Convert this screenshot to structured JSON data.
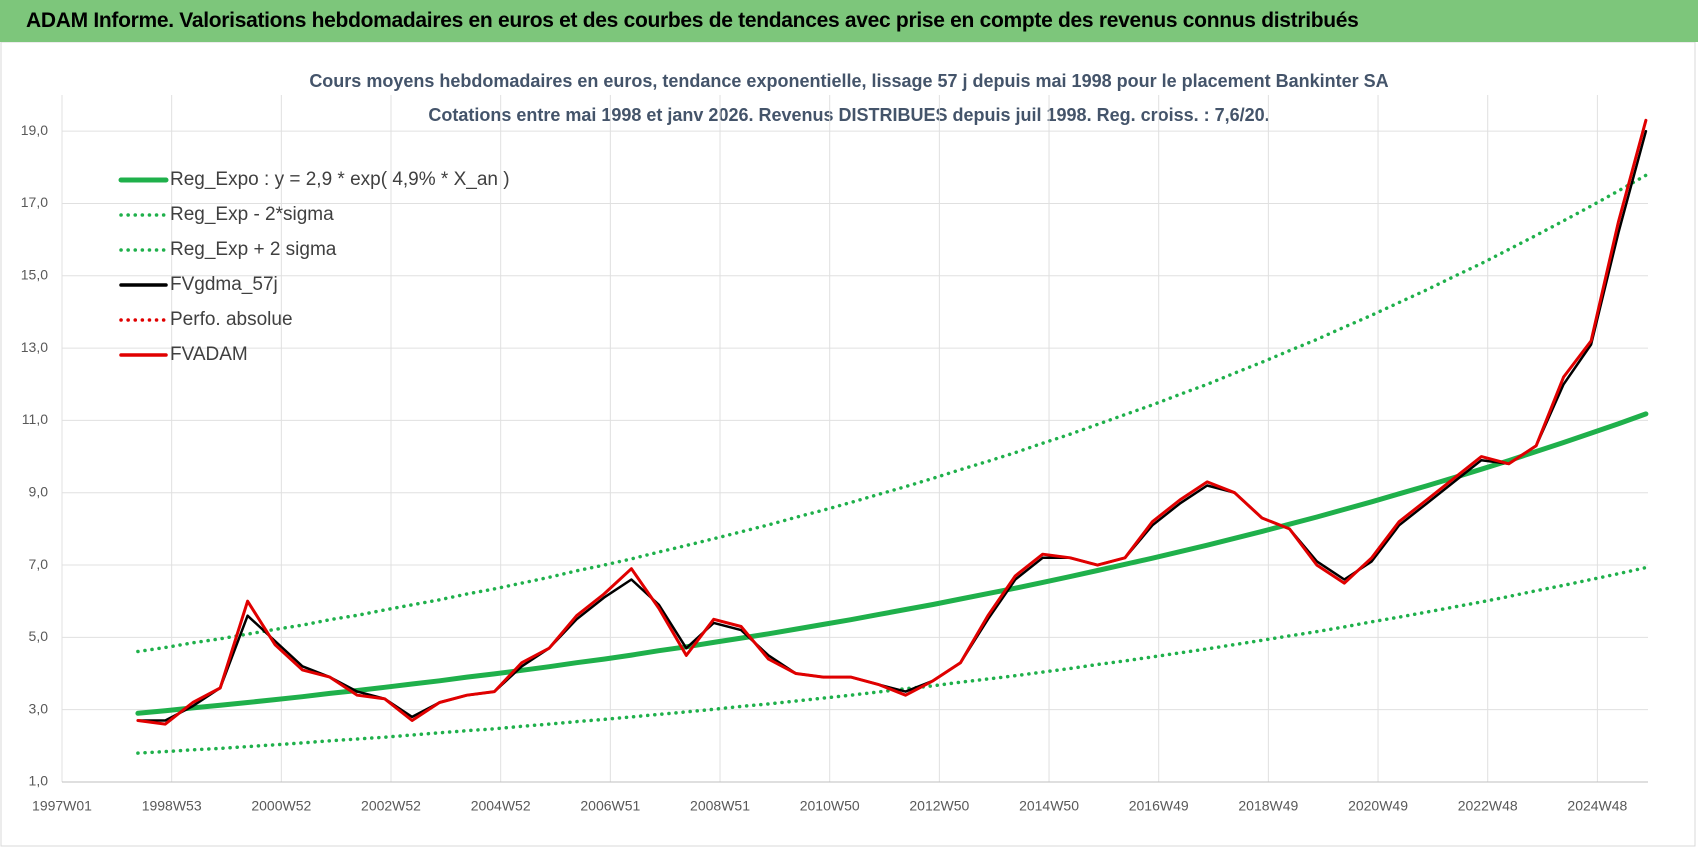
{
  "header": {
    "title": "ADAM Informe. Valorisations hebdomadaires en euros et des courbes de tendances avec prise en compte des revenus connus distribués"
  },
  "chart_data": {
    "type": "line",
    "title": "Cours moyens hebdomadaires en euros, tendance exponentielle, lissage 57 j depuis mai 1998 pour le placement Bankinter SA",
    "subtitle": "Cotations entre mai 1998 et janv 2026. Revenus DISTRIBUES depuis juil 1998. Reg. croiss. : 7,6/20.",
    "x": [
      72,
      98,
      124,
      150,
      176,
      202,
      228,
      254,
      280,
      306,
      332,
      358,
      384,
      410,
      436,
      462,
      488,
      514,
      540,
      566,
      592,
      618,
      644,
      670,
      696,
      722,
      748,
      774,
      800,
      826,
      852,
      878,
      904,
      930,
      956,
      982,
      1008,
      1034,
      1060,
      1086,
      1112,
      1138,
      1164,
      1190,
      1216,
      1242,
      1268,
      1294,
      1320,
      1346,
      1372,
      1398,
      1424,
      1450,
      1476,
      1502
    ],
    "xlim": [
      0,
      1504
    ],
    "xticks": [
      {
        "value": 0,
        "label": "1997W01"
      },
      {
        "value": 104,
        "label": "1998W53"
      },
      {
        "value": 208,
        "label": "2000W52"
      },
      {
        "value": 312,
        "label": "2002W52"
      },
      {
        "value": 416,
        "label": "2004W52"
      },
      {
        "value": 520,
        "label": "2006W51"
      },
      {
        "value": 624,
        "label": "2008W51"
      },
      {
        "value": 728,
        "label": "2010W50"
      },
      {
        "value": 832,
        "label": "2012W50"
      },
      {
        "value": 936,
        "label": "2014W50"
      },
      {
        "value": 1040,
        "label": "2016W49"
      },
      {
        "value": 1144,
        "label": "2018W49"
      },
      {
        "value": 1248,
        "label": "2020W49"
      },
      {
        "value": 1352,
        "label": "2022W48"
      },
      {
        "value": 1456,
        "label": "2024W48"
      }
    ],
    "ylim": [
      1,
      20
    ],
    "yticks": [
      {
        "value": 1,
        "label": "1,0"
      },
      {
        "value": 3,
        "label": "3,0"
      },
      {
        "value": 5,
        "label": "5,0"
      },
      {
        "value": 7,
        "label": "7,0"
      },
      {
        "value": 9,
        "label": "9,0"
      },
      {
        "value": 11,
        "label": "11,0"
      },
      {
        "value": 13,
        "label": "13,0"
      },
      {
        "value": 15,
        "label": "15,0"
      },
      {
        "value": 17,
        "label": "17,0"
      },
      {
        "value": 19,
        "label": "19,0"
      }
    ],
    "grid": true,
    "legend": "top-left",
    "series": [
      {
        "name": "Reg_Expo : y = 2,9 * exp( 4,9% *  X_an )",
        "color": "#1fb04b",
        "dotted": false,
        "values": [
          2.9,
          2.97,
          3.05,
          3.12,
          3.2,
          3.28,
          3.36,
          3.45,
          3.53,
          3.62,
          3.71,
          3.8,
          3.9,
          3.99,
          4.09,
          4.19,
          4.3,
          4.4,
          4.51,
          4.63,
          4.74,
          4.86,
          4.98,
          5.1,
          5.23,
          5.36,
          5.49,
          5.63,
          5.77,
          5.91,
          6.06,
          6.21,
          6.36,
          6.52,
          6.68,
          6.85,
          7.02,
          7.19,
          7.37,
          7.55,
          7.74,
          7.93,
          8.13,
          8.33,
          8.54,
          8.75,
          8.97,
          9.19,
          9.42,
          9.65,
          9.89,
          10.14,
          10.39,
          10.65,
          10.91,
          11.18
        ]
      },
      {
        "name": "Reg_Exp - 2*sigma",
        "color": "#1fb04b",
        "dotted": true,
        "values": [
          1.8,
          1.84,
          1.89,
          1.93,
          1.98,
          2.03,
          2.08,
          2.14,
          2.19,
          2.24,
          2.3,
          2.36,
          2.42,
          2.47,
          2.54,
          2.6,
          2.67,
          2.73,
          2.8,
          2.87,
          2.94,
          3.01,
          3.09,
          3.16,
          3.24,
          3.32,
          3.4,
          3.49,
          3.58,
          3.66,
          3.76,
          3.85,
          3.94,
          4.04,
          4.14,
          4.25,
          4.35,
          4.46,
          4.57,
          4.68,
          4.8,
          4.92,
          5.04,
          5.16,
          5.29,
          5.43,
          5.56,
          5.7,
          5.84,
          5.98,
          6.13,
          6.29,
          6.44,
          6.6,
          6.76,
          6.93
        ]
      },
      {
        "name": "Reg_Exp + 2 sigma",
        "color": "#1fb04b",
        "dotted": true,
        "values": [
          4.61,
          4.72,
          4.85,
          4.96,
          5.09,
          5.22,
          5.34,
          5.49,
          5.61,
          5.76,
          5.9,
          6.04,
          6.2,
          6.34,
          6.5,
          6.66,
          6.84,
          7.0,
          7.17,
          7.36,
          7.54,
          7.73,
          7.92,
          8.11,
          8.32,
          8.52,
          8.73,
          8.95,
          9.17,
          9.4,
          9.64,
          9.87,
          10.11,
          10.37,
          10.62,
          10.89,
          11.16,
          11.43,
          11.72,
          12.0,
          12.31,
          12.61,
          12.93,
          13.24,
          13.58,
          13.91,
          14.26,
          14.61,
          14.98,
          15.34,
          15.73,
          16.12,
          16.52,
          16.93,
          17.35,
          17.78
        ]
      },
      {
        "name": "FVgdma_57j",
        "color": "#000000",
        "dotted": false,
        "values": [
          2.7,
          2.7,
          3.1,
          3.6,
          5.6,
          4.9,
          4.2,
          3.9,
          3.5,
          3.3,
          2.8,
          3.2,
          3.4,
          3.5,
          4.2,
          4.7,
          5.5,
          6.1,
          6.6,
          5.9,
          4.7,
          5.4,
          5.2,
          4.5,
          4.0,
          3.9,
          3.9,
          3.7,
          3.5,
          3.8,
          4.3,
          5.5,
          6.6,
          7.2,
          7.2,
          7.0,
          7.2,
          8.1,
          8.7,
          9.2,
          9.0,
          8.3,
          8.0,
          7.1,
          6.6,
          7.1,
          8.1,
          8.7,
          9.3,
          9.9,
          9.8,
          10.3,
          12.0,
          13.1,
          16.2,
          19.0
        ]
      },
      {
        "name": "Perfo. absolue",
        "color": "#e00000",
        "dotted": true,
        "values": [
          2.7,
          2.6,
          3.2,
          3.6,
          6.0,
          4.8,
          4.1,
          3.9,
          3.4,
          3.3,
          2.7,
          3.2,
          3.4,
          3.5,
          4.3,
          4.7,
          5.6,
          6.2,
          6.9,
          5.8,
          4.5,
          5.5,
          5.3,
          4.4,
          4.0,
          3.9,
          3.9,
          3.7,
          3.4,
          3.8,
          4.3,
          5.6,
          6.7,
          7.3,
          7.2,
          7.0,
          7.2,
          8.2,
          8.8,
          9.3,
          9.0,
          8.3,
          8.0,
          7.0,
          6.5,
          7.2,
          8.2,
          8.8,
          9.4,
          10.0,
          9.8,
          10.3,
          12.2,
          13.2,
          16.5,
          19.3
        ]
      },
      {
        "name": "FVADAM",
        "color": "#e00000",
        "dotted": false,
        "values": [
          2.7,
          2.6,
          3.2,
          3.6,
          6.0,
          4.8,
          4.1,
          3.9,
          3.4,
          3.3,
          2.7,
          3.2,
          3.4,
          3.5,
          4.3,
          4.7,
          5.6,
          6.2,
          6.9,
          5.8,
          4.5,
          5.5,
          5.3,
          4.4,
          4.0,
          3.9,
          3.9,
          3.7,
          3.4,
          3.8,
          4.3,
          5.6,
          6.7,
          7.3,
          7.2,
          7.0,
          7.2,
          8.2,
          8.8,
          9.3,
          9.0,
          8.3,
          8.0,
          7.0,
          6.5,
          7.2,
          8.2,
          8.8,
          9.4,
          10.0,
          9.8,
          10.3,
          12.2,
          13.2,
          16.5,
          19.3
        ]
      }
    ]
  }
}
